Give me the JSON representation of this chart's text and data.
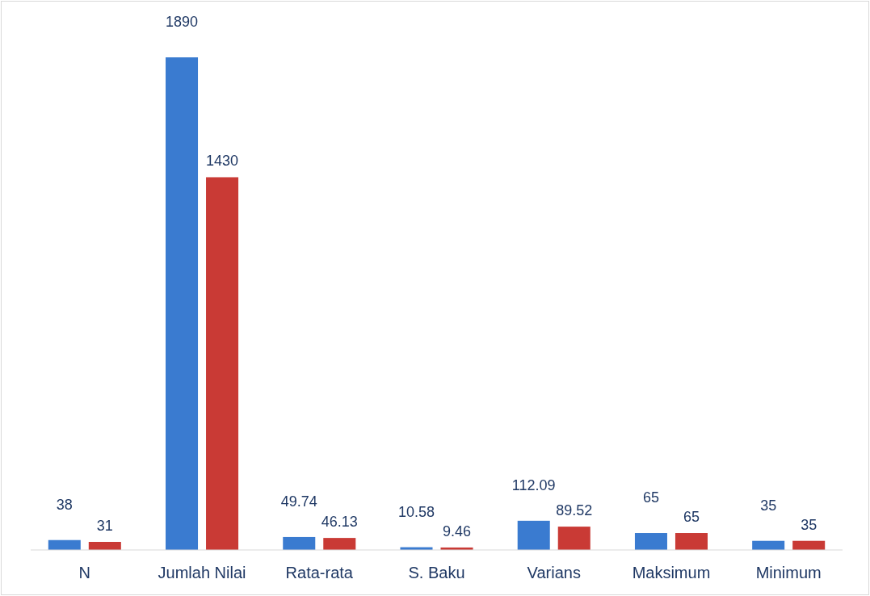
{
  "chart_data": {
    "type": "bar",
    "categories": [
      "N",
      "Jumlah Nilai",
      "Rata-rata",
      "S. Baku",
      "Varians",
      "Maksimum",
      "Minimum"
    ],
    "series": [
      {
        "color": "#3a7bd0",
        "values": [
          38,
          1890,
          49.74,
          10.58,
          112.09,
          65,
          35
        ]
      },
      {
        "color": "#c93a35",
        "values": [
          31,
          1430,
          46.13,
          9.46,
          89.52,
          65,
          35
        ]
      }
    ],
    "data_labels": true
  }
}
